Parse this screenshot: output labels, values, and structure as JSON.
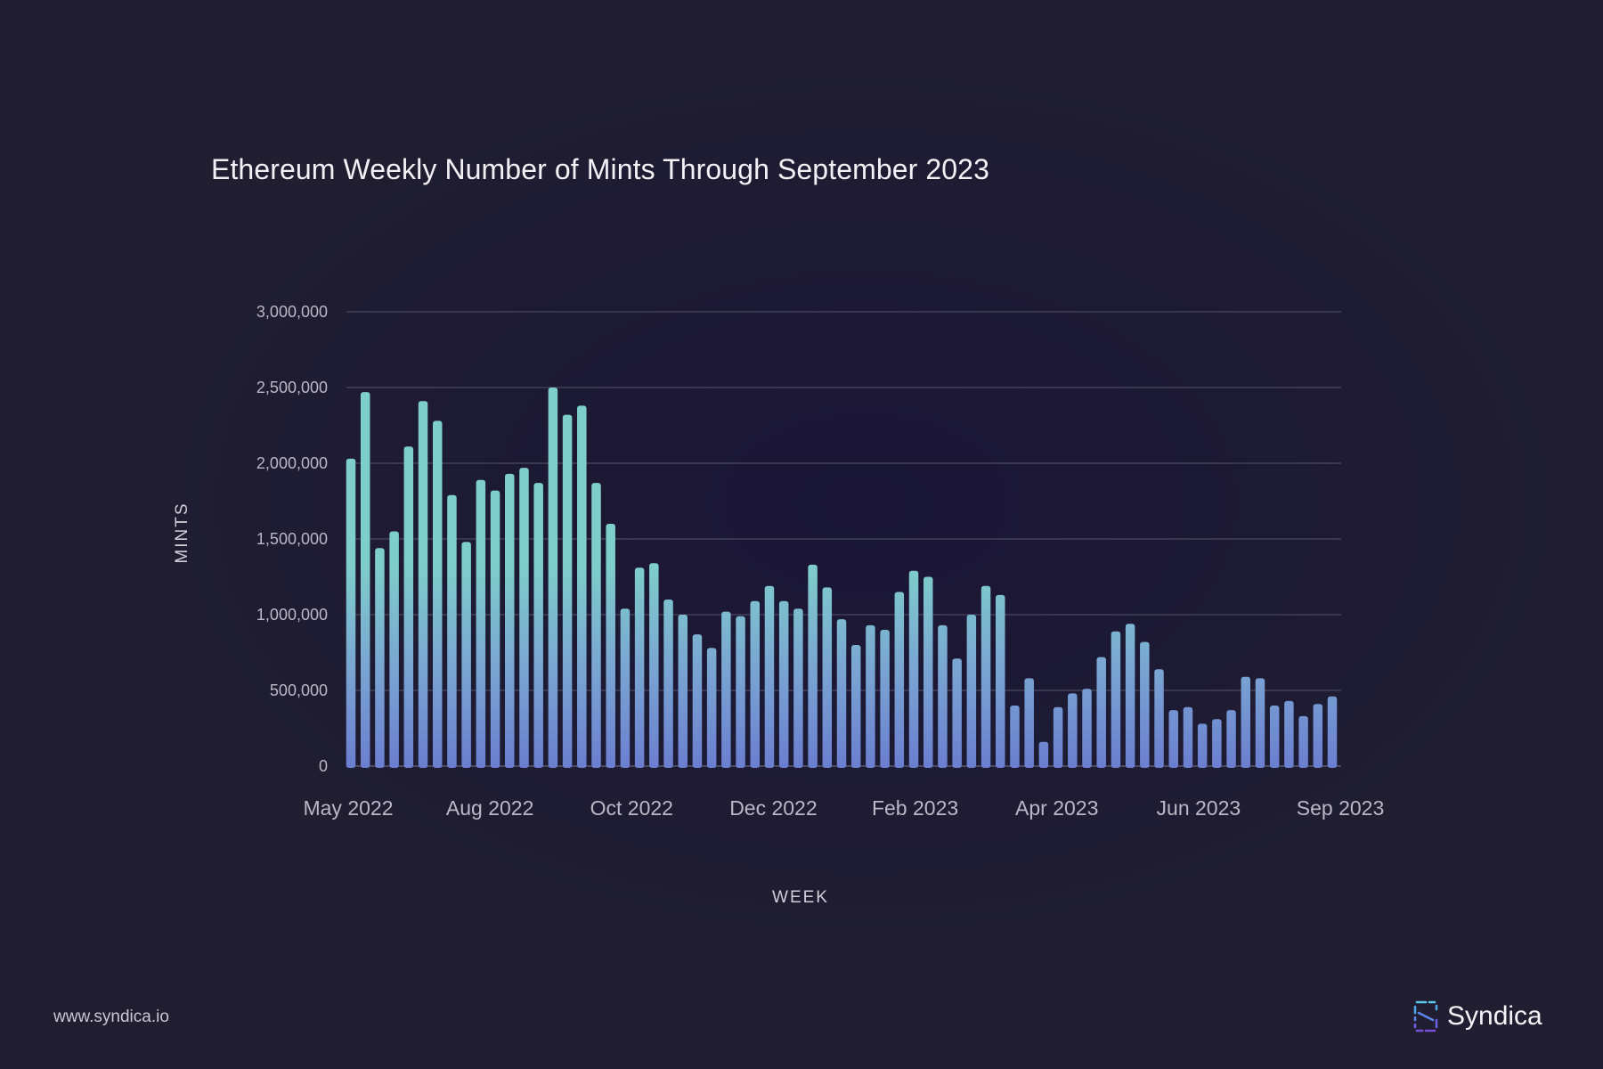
{
  "title": "Ethereum Weekly Number of Mints Through September 2023",
  "footer": {
    "url": "www.syndica.io",
    "brand_name": "Syndica",
    "brand_icon": "syndica-logo-icon"
  },
  "colors": {
    "background": "#201e30",
    "bar_top": "#7ecfcb",
    "bar_bottom": "#6b7fd0",
    "grid": "#4a4860",
    "axis_text": "#b9b8c6",
    "title_text": "#f1f1f6"
  },
  "chart_data": {
    "type": "bar",
    "title": "Ethereum Weekly Number of Mints Through September 2023",
    "xlabel": "WEEK",
    "ylabel": "MINTS",
    "ylim": [
      0,
      3000000
    ],
    "yticks": [
      0,
      500000,
      1000000,
      1500000,
      2000000,
      2500000,
      3000000
    ],
    "ytick_labels": [
      "0",
      "500,000",
      "1,000,000",
      "1,500,000",
      "2,000,000",
      "2,500,000",
      "3,000,000"
    ],
    "xtick_labels": [
      "May 2022",
      "Aug 2022",
      "Oct 2022",
      "Dec 2022",
      "Feb 2023",
      "Apr 2023",
      "Jun 2023",
      "Sep 2023"
    ],
    "grid": true,
    "legend": "none",
    "series": [
      {
        "values": [
          2030000,
          2470000,
          1440000,
          1550000,
          2110000,
          2410000,
          2280000,
          1790000,
          1480000,
          1890000,
          1820000,
          1930000,
          1970000,
          1870000,
          2500000,
          2320000,
          2380000,
          1870000,
          1600000,
          1040000,
          1310000,
          1340000,
          1100000,
          1000000,
          870000,
          780000,
          1020000,
          990000,
          1090000,
          1190000,
          1090000,
          1040000,
          1330000,
          1180000,
          970000,
          800000,
          930000,
          900000,
          1150000,
          1290000,
          1250000,
          930000,
          710000,
          1000000,
          1190000,
          1130000,
          400000,
          580000,
          160000,
          390000,
          480000,
          510000,
          720000,
          890000,
          940000,
          820000,
          640000,
          370000,
          390000,
          280000,
          310000,
          370000,
          590000,
          580000,
          400000,
          430000,
          330000,
          410000,
          460000
        ]
      }
    ]
  }
}
